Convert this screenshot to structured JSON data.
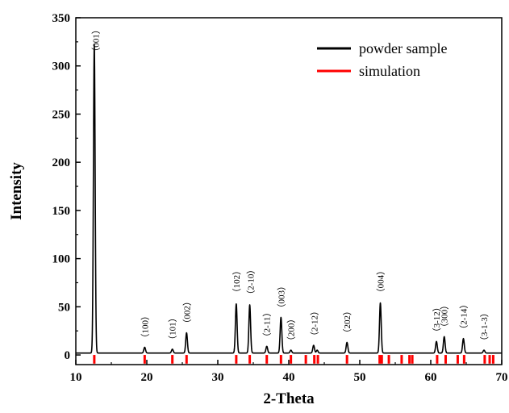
{
  "chart_data": {
    "type": "line",
    "xlabel": "2-Theta",
    "ylabel": "Intensity",
    "xlim": [
      10,
      70
    ],
    "ylim": [
      -10,
      350
    ],
    "x_ticks": [
      "10",
      "20",
      "30",
      "40",
      "50",
      "60",
      "70"
    ],
    "y_ticks": [
      "0",
      "50",
      "100",
      "150",
      "200",
      "250",
      "300",
      "350"
    ],
    "grid": false,
    "legend_position": "top-right",
    "colors": {
      "powder": "#000000",
      "simulation": "#ff0000"
    },
    "series": [
      {
        "name": "powder sample",
        "kind": "line",
        "baseline": 2,
        "peaks": [
          {
            "x": 12.6,
            "y": 322
          },
          {
            "x": 19.7,
            "y": 8
          },
          {
            "x": 23.6,
            "y": 6
          },
          {
            "x": 25.6,
            "y": 23
          },
          {
            "x": 32.6,
            "y": 53
          },
          {
            "x": 34.5,
            "y": 52
          },
          {
            "x": 36.9,
            "y": 9
          },
          {
            "x": 38.9,
            "y": 39
          },
          {
            "x": 40.3,
            "y": 5
          },
          {
            "x": 43.5,
            "y": 10
          },
          {
            "x": 44.0,
            "y": 5
          },
          {
            "x": 48.2,
            "y": 13
          },
          {
            "x": 52.9,
            "y": 54
          },
          {
            "x": 60.8,
            "y": 14
          },
          {
            "x": 61.9,
            "y": 19
          },
          {
            "x": 64.6,
            "y": 17
          },
          {
            "x": 67.5,
            "y": 5
          }
        ]
      },
      {
        "name": "simulation",
        "kind": "stick",
        "x": [
          12.6,
          19.7,
          23.6,
          25.6,
          32.6,
          34.5,
          36.9,
          38.9,
          40.3,
          42.4,
          43.6,
          44.1,
          48.2,
          52.8,
          53.1,
          54.1,
          55.9,
          57.0,
          57.4,
          60.9,
          62.1,
          63.8,
          64.7,
          67.6,
          68.3,
          68.8
        ],
        "height": -9
      }
    ],
    "annotations": [
      {
        "text": "（001）",
        "x": 12.8,
        "y": 310
      },
      {
        "text": "（100）",
        "x": 19.7,
        "y": 13
      },
      {
        "text": "（101）",
        "x": 23.6,
        "y": 11
      },
      {
        "text": "（002）",
        "x": 25.6,
        "y": 28
      },
      {
        "text": "（102）",
        "x": 32.6,
        "y": 60
      },
      {
        "text": "（2-10）",
        "x": 34.6,
        "y": 58
      },
      {
        "text": "（2-11）",
        "x": 36.9,
        "y": 14
      },
      {
        "text": "（003）",
        "x": 38.9,
        "y": 44
      },
      {
        "text": "（200）",
        "x": 40.3,
        "y": 10
      },
      {
        "text": "（2-12）",
        "x": 43.6,
        "y": 15
      },
      {
        "text": "（202）",
        "x": 48.2,
        "y": 18
      },
      {
        "text": "（004）",
        "x": 52.9,
        "y": 60
      },
      {
        "text": "（3-12）",
        "x": 60.8,
        "y": 19
      },
      {
        "text": "（300）",
        "x": 61.9,
        "y": 24
      },
      {
        "text": "（2-14）",
        "x": 64.6,
        "y": 22
      },
      {
        "text": "（3-1-3）",
        "x": 67.5,
        "y": 10
      }
    ]
  }
}
